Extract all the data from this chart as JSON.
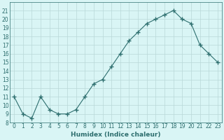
{
  "x": [
    0,
    1,
    2,
    3,
    4,
    5,
    6,
    7,
    8,
    9,
    10,
    11,
    12,
    13,
    14,
    15,
    16,
    17,
    18,
    19,
    20,
    21,
    22,
    23
  ],
  "y": [
    11.0,
    9.0,
    8.5,
    11.0,
    9.5,
    9.0,
    9.0,
    9.5,
    11.0,
    12.5,
    13.0,
    14.5,
    16.0,
    17.5,
    18.5,
    19.5,
    20.0,
    20.5,
    21.0,
    20.0,
    19.5,
    17.0,
    16.0,
    15.0
  ],
  "line_color": "#2d6e6e",
  "marker": "+",
  "marker_size": 4,
  "bg_color": "#d9f5f5",
  "grid_color": "#b8d8d8",
  "xlabel": "Humidex (Indice chaleur)",
  "xlim": [
    -0.5,
    23.5
  ],
  "ylim": [
    8,
    22
  ],
  "yticks": [
    8,
    9,
    10,
    11,
    12,
    13,
    14,
    15,
    16,
    17,
    18,
    19,
    20,
    21
  ],
  "xticks": [
    0,
    1,
    2,
    3,
    4,
    5,
    6,
    7,
    8,
    9,
    10,
    11,
    12,
    13,
    14,
    15,
    16,
    17,
    18,
    19,
    20,
    21,
    22,
    23
  ],
  "tick_fontsize": 5.5,
  "label_fontsize": 6.5
}
